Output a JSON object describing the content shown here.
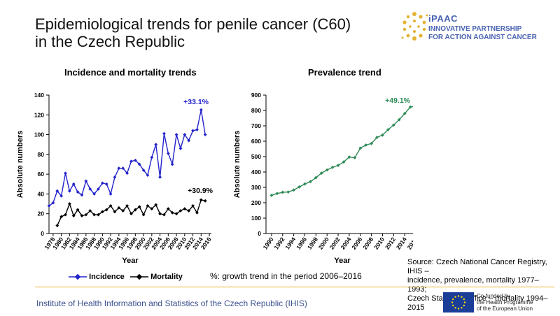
{
  "title_line1": "Epidemiological trends for penile cancer (C60)",
  "title_line2": "in the Czech Republic",
  "logo": {
    "name": "iPAAC",
    "tagline_1": "INNOVATIVE PARTNERSHIP",
    "tagline_2": "FOR ACTION AGAINST CANCER"
  },
  "legend": {
    "incidence": "Incidence",
    "mortality": "Mortality"
  },
  "note": "%: growth trend in the period 2006–2016",
  "source": {
    "line1": "Source: Czech National Cancer Registry, IHIS –",
    "line2": "incidence, prevalence, mortality 1977–1993;",
    "line3": "Czech Statistical Office – mortality 1994–2015"
  },
  "footer": "Institute of Health Information and Statistics of the Czech Republic (IHIS)",
  "eu_text": {
    "line1": "Co-funded by",
    "line2": "the Health Programme",
    "line3": "of the European Union"
  },
  "colors": {
    "incidence": "#2222cc",
    "mortality": "#000000",
    "prevalence": "#2e8b57",
    "accent": "#e3b233",
    "brand": "#4a63b3"
  },
  "chart_data": [
    {
      "type": "line",
      "title": "Incidence and mortality trends",
      "xlabel": "Year",
      "ylabel": "Absolute numbers",
      "ylim": [
        0,
        140
      ],
      "yticks": [
        0,
        20,
        40,
        60,
        80,
        100,
        120,
        140
      ],
      "xlim": [
        1978,
        2016
      ],
      "xticks": [
        1978,
        1980,
        1982,
        1984,
        1986,
        1988,
        1990,
        1992,
        1994,
        1996,
        1998,
        2000,
        2002,
        2004,
        2006,
        2008,
        2010,
        2012,
        2014,
        2016
      ],
      "grid": false,
      "series": [
        {
          "name": "Incidence",
          "x": [
            1977,
            1978,
            1979,
            1980,
            1981,
            1982,
            1983,
            1984,
            1985,
            1986,
            1987,
            1988,
            1989,
            1990,
            1991,
            1992,
            1993,
            1994,
            1995,
            1996,
            1997,
            1998,
            1999,
            2000,
            2001,
            2002,
            2003,
            2004,
            2005,
            2006,
            2007,
            2008,
            2009,
            2010,
            2011,
            2012,
            2013,
            2014,
            2015,
            2016
          ],
          "values": [
            28,
            31,
            43,
            38,
            61,
            43,
            50,
            42,
            39,
            53,
            45,
            40,
            45,
            51,
            50,
            40,
            57,
            66,
            66,
            61,
            73,
            74,
            70,
            64,
            59,
            77,
            90,
            57,
            101,
            81,
            70,
            100,
            86,
            100,
            94,
            104,
            105,
            125,
            100,
            null
          ],
          "annotation": "+33.1%"
        },
        {
          "name": "Mortality",
          "x": [
            1977,
            1978,
            1979,
            1980,
            1981,
            1982,
            1983,
            1984,
            1985,
            1986,
            1987,
            1988,
            1989,
            1990,
            1991,
            1992,
            1993,
            1994,
            1995,
            1996,
            1997,
            1998,
            1999,
            2000,
            2001,
            2002,
            2003,
            2004,
            2005,
            2006,
            2007,
            2008,
            2009,
            2010,
            2011,
            2012,
            2013,
            2014,
            2015,
            2016
          ],
          "values": [
            null,
            null,
            8,
            17,
            19,
            30,
            18,
            24,
            18,
            19,
            23,
            19,
            19,
            22,
            24,
            28,
            22,
            26,
            23,
            28,
            20,
            24,
            27,
            19,
            28,
            25,
            29,
            20,
            19,
            25,
            21,
            20,
            23,
            25,
            23,
            28,
            21,
            34,
            33,
            null
          ],
          "annotation": "+30.9%"
        }
      ]
    },
    {
      "type": "line",
      "title": "Prevalence trend",
      "xlabel": "Year",
      "ylabel": "Absolute numbers",
      "ylim": [
        0,
        900
      ],
      "yticks": [
        0,
        100,
        200,
        300,
        400,
        500,
        600,
        700,
        800,
        900
      ],
      "xlim": [
        1990,
        2016
      ],
      "xticks": [
        1990,
        1992,
        1994,
        1996,
        1998,
        2000,
        2002,
        2004,
        2006,
        2008,
        2010,
        2012,
        2014,
        2016
      ],
      "grid": false,
      "series": [
        {
          "name": "Prevalence",
          "x": [
            1990,
            1991,
            1992,
            1993,
            1994,
            1995,
            1996,
            1997,
            1998,
            1999,
            2000,
            2001,
            2002,
            2003,
            2004,
            2005,
            2006,
            2007,
            2008,
            2009,
            2010,
            2011,
            2012,
            2013,
            2014,
            2015,
            2016
          ],
          "values": [
            248,
            260,
            268,
            270,
            283,
            303,
            322,
            337,
            363,
            393,
            413,
            430,
            443,
            465,
            497,
            493,
            555,
            575,
            585,
            625,
            640,
            675,
            705,
            740,
            780,
            822,
            828
          ],
          "annotation": "+49.1%"
        }
      ]
    }
  ]
}
